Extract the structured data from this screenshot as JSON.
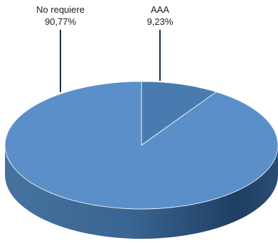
{
  "chart_data": {
    "type": "pie",
    "title": "",
    "style": "3d",
    "slices": [
      {
        "label": "No requiere",
        "value": 90.77,
        "display": "90,77%",
        "color": "#5b8fc9"
      },
      {
        "label": "AAA",
        "value": 9.23,
        "display": "9,23%",
        "color": "#4a7bb0"
      }
    ]
  }
}
